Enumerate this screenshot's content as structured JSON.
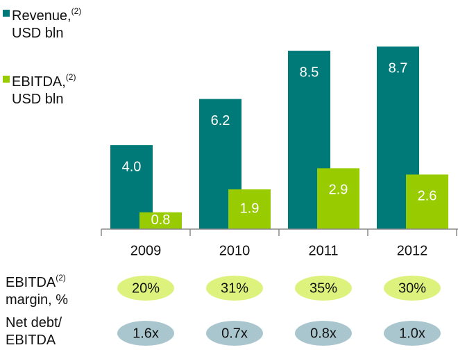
{
  "chart_data": {
    "type": "bar",
    "categories": [
      "2009",
      "2010",
      "2011",
      "2012"
    ],
    "series": [
      {
        "name": [
          "Revenue,",
          "USD bln"
        ],
        "footnote": "(2)",
        "color": "#007a78",
        "values": [
          4.0,
          6.2,
          8.5,
          8.7
        ],
        "value_labels": [
          "4.0",
          "6.2",
          "8.5",
          "8.7"
        ]
      },
      {
        "name": [
          "EBITDA,",
          "USD bln"
        ],
        "footnote": "(2)",
        "color": "#99cc00",
        "values": [
          0.8,
          1.9,
          2.9,
          2.6
        ],
        "value_labels": [
          "0.8",
          "1.9",
          "2.9",
          "2.6"
        ]
      }
    ],
    "rows": [
      {
        "label": [
          "EBITDA",
          "margin, %"
        ],
        "footnote": "(2)",
        "color": "#ddf27c",
        "values": [
          20,
          31,
          35,
          30
        ],
        "value_labels": [
          "20%",
          "31%",
          "35%",
          "30%"
        ]
      },
      {
        "label": [
          "Net debt/",
          "EBITDA"
        ],
        "color": "#a9c6cf",
        "values": [
          1.6,
          0.7,
          0.8,
          1.0
        ],
        "value_labels": [
          "1.6x",
          "0.7x",
          "0.8x",
          "1.0x"
        ]
      }
    ]
  }
}
